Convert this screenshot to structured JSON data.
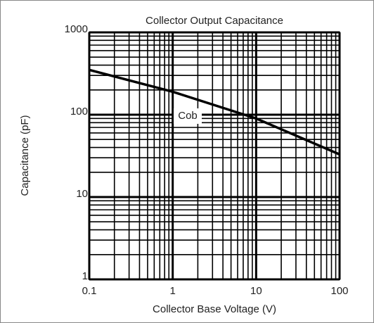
{
  "chart_data": {
    "type": "line",
    "title": "Collector Output Capacitance",
    "x_label": "Collector Base Voltage (V)",
    "y_label": "Capacitance (pF)",
    "annotation": "Cob",
    "x": [
      0.1,
      1,
      10,
      100
    ],
    "series": [
      {
        "name": "Cob",
        "color": "#000000",
        "values": [
          350,
          190,
          90,
          33
        ]
      }
    ],
    "xlim": [
      0.1,
      100
    ],
    "ylim": [
      1,
      1000
    ],
    "xticks": [
      0.1,
      1,
      10,
      100
    ],
    "yticks": [
      1,
      10,
      100,
      1000
    ],
    "xscale": "log",
    "yscale": "log",
    "grid": true,
    "minor_grid": true
  }
}
